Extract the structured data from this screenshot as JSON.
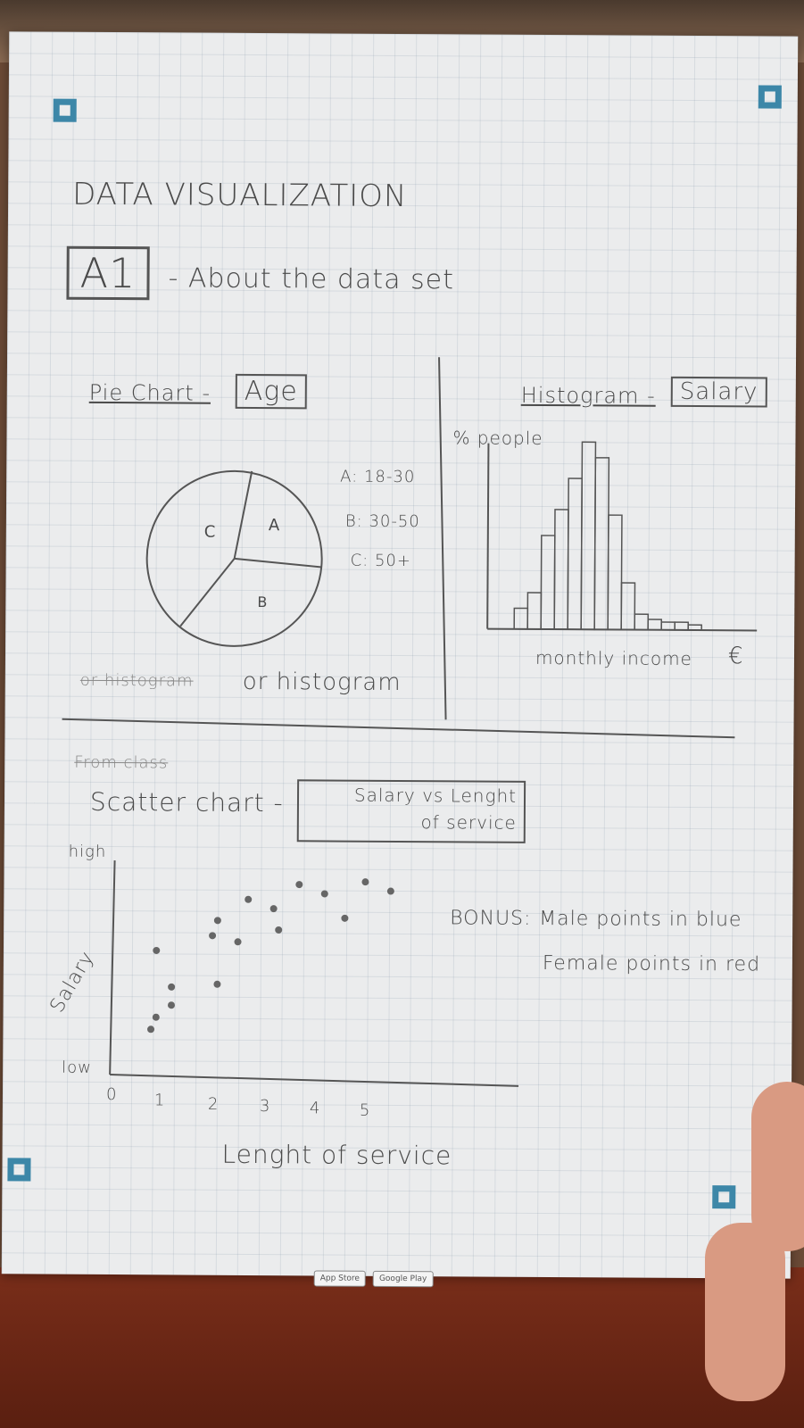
{
  "heading": {
    "title": "DATA VISUALIZATION",
    "section_code": "A1",
    "section_desc": "- About the data set"
  },
  "pie": {
    "heading": "Pie Chart -",
    "boxed": "Age",
    "slices": [
      {
        "label": "A",
        "legend": "A: 18-30"
      },
      {
        "label": "B",
        "legend": "B: 30-50"
      },
      {
        "label": "C",
        "legend": "C: 50+"
      }
    ],
    "note_crossed": "or histogram",
    "note": "or histogram"
  },
  "histogram": {
    "heading": "Histogram -",
    "boxed": "Salary",
    "ylabel": "% people",
    "xlabel": "monthly income",
    "unit": "€",
    "values": [
      8,
      14,
      36,
      46,
      58,
      72,
      66,
      44,
      18,
      6,
      4,
      3,
      3,
      2
    ]
  },
  "scatter": {
    "crossed_note": "From class",
    "heading": "Scatter chart -",
    "boxed_line1": "Salary vs Lenght",
    "boxed_line2": "of service",
    "ylabel": "Salary",
    "y_high": "high",
    "y_low": "low",
    "xlabel": "Lenght of service",
    "x_ticks": [
      "0",
      "1",
      "2",
      "3",
      "4",
      "5"
    ],
    "points": [
      [
        0.8,
        1.5
      ],
      [
        0.9,
        1.9
      ],
      [
        1.2,
        2.3
      ],
      [
        1.2,
        2.9
      ],
      [
        0.9,
        4.1
      ],
      [
        2.1,
        3.0
      ],
      [
        2.5,
        4.4
      ],
      [
        2.1,
        5.1
      ],
      [
        2.7,
        5.8
      ],
      [
        3.2,
        5.5
      ],
      [
        3.7,
        6.3
      ],
      [
        4.2,
        6.0
      ],
      [
        4.6,
        5.2
      ],
      [
        5.0,
        6.4
      ],
      [
        5.5,
        6.1
      ],
      [
        3.3,
        4.8
      ],
      [
        2.0,
        4.6
      ]
    ]
  },
  "bonus": {
    "label": "BONUS:",
    "line1": "Male points in blue",
    "line2": "Female points in red"
  },
  "badges": [
    "App Store",
    "Google Play"
  ],
  "colors": {
    "marker": "#3d87a8",
    "ink": "#4a4a4a"
  }
}
